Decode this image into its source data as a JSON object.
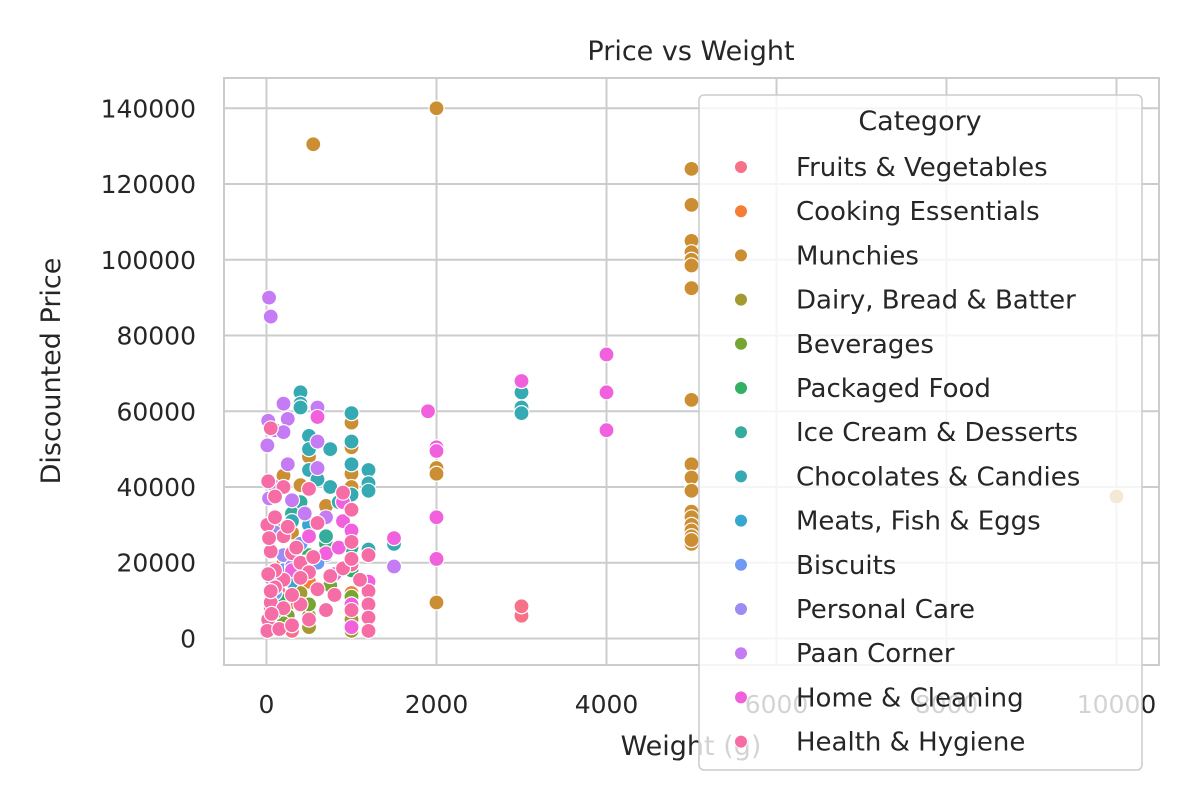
{
  "chart_data": {
    "type": "scatter",
    "title": "Price vs Weight",
    "xlabel": "Weight (g)",
    "ylabel": "Discounted Price",
    "xlim": [
      -500,
      10500
    ],
    "ylim": [
      -7000,
      148000
    ],
    "x_ticks": [
      0,
      2000,
      4000,
      6000,
      8000,
      10000
    ],
    "x_tick_labels": [
      "0",
      "2000",
      "4000",
      "6000",
      "8000",
      "10000"
    ],
    "y_ticks": [
      0,
      20000,
      40000,
      60000,
      80000,
      100000,
      120000,
      140000
    ],
    "y_tick_labels": [
      "0",
      "20000",
      "40000",
      "60000",
      "80000",
      "100000",
      "120000",
      "140000"
    ],
    "grid": true,
    "legend": {
      "title": "Category",
      "position": "upper-right"
    },
    "series": [
      {
        "name": "Fruits & Vegetables",
        "color": "#f77189",
        "points": [
          [
            3000,
            6000
          ],
          [
            3000,
            8500
          ],
          [
            100,
            3000
          ],
          [
            200,
            5000
          ],
          [
            300,
            2000
          ],
          [
            500,
            4000
          ],
          [
            50,
            8000
          ],
          [
            150,
            12000
          ]
        ]
      },
      {
        "name": "Cooking Essentials",
        "color": "#f57d36",
        "points": [
          [
            100,
            5000
          ],
          [
            250,
            9000
          ],
          [
            500,
            15000
          ],
          [
            50,
            3000
          ],
          [
            1000,
            12000
          ],
          [
            200,
            20000
          ]
        ]
      },
      {
        "name": "Munchies",
        "color": "#cc8e32",
        "points": [
          [
            550,
            130500
          ],
          [
            2000,
            140000
          ],
          [
            5000,
            124000
          ],
          [
            5000,
            114500
          ],
          [
            5000,
            105000
          ],
          [
            5000,
            102000
          ],
          [
            5000,
            100000
          ],
          [
            5000,
            98500
          ],
          [
            5000,
            92500
          ],
          [
            5000,
            63000
          ],
          [
            5000,
            46000
          ],
          [
            5000,
            42500
          ],
          [
            5000,
            39000
          ],
          [
            5000,
            33500
          ],
          [
            5000,
            32000
          ],
          [
            5000,
            30000
          ],
          [
            5000,
            28500
          ],
          [
            5000,
            27000
          ],
          [
            5000,
            25000
          ],
          [
            5000,
            26000
          ],
          [
            10000,
            37500
          ],
          [
            2000,
            45000
          ],
          [
            2000,
            43500
          ],
          [
            2000,
            9500
          ],
          [
            1000,
            57000
          ],
          [
            1000,
            50500
          ],
          [
            1000,
            43500
          ],
          [
            1000,
            40000
          ],
          [
            900,
            37000
          ],
          [
            500,
            48000
          ],
          [
            200,
            43000
          ],
          [
            100,
            30000
          ],
          [
            700,
            35000
          ],
          [
            300,
            28000
          ],
          [
            400,
            40500
          ]
        ]
      },
      {
        "name": "Dairy, Bread & Batter",
        "color": "#a39b31",
        "points": [
          [
            400,
            12000
          ],
          [
            500,
            3000
          ],
          [
            1000,
            5000
          ],
          [
            200,
            8000
          ],
          [
            1000,
            2000
          ],
          [
            500,
            6000
          ],
          [
            100,
            15000
          ]
        ]
      },
      {
        "name": "Beverages",
        "color": "#76a531",
        "points": [
          [
            250,
            6000
          ],
          [
            500,
            9000
          ],
          [
            1000,
            11000
          ],
          [
            200,
            4000
          ],
          [
            750,
            14000
          ]
        ]
      },
      {
        "name": "Packaged Food",
        "color": "#32b165",
        "points": [
          [
            200,
            10000
          ],
          [
            500,
            22000
          ],
          [
            1000,
            18000
          ],
          [
            100,
            7000
          ],
          [
            300,
            16000
          ],
          [
            700,
            25000
          ]
        ]
      },
      {
        "name": "Ice Cream & Desserts",
        "color": "#35ad9c",
        "points": [
          [
            400,
            36000
          ],
          [
            500,
            30000
          ],
          [
            700,
            27000
          ],
          [
            1000,
            24000
          ],
          [
            450,
            20000
          ],
          [
            300,
            33000
          ]
        ]
      },
      {
        "name": "Chocolates & Candies",
        "color": "#36aab2",
        "points": [
          [
            400,
            65000
          ],
          [
            400,
            62000
          ],
          [
            400,
            61000
          ],
          [
            500,
            53500
          ],
          [
            500,
            50000
          ],
          [
            500,
            44500
          ],
          [
            750,
            50000
          ],
          [
            750,
            40000
          ],
          [
            1000,
            59500
          ],
          [
            1000,
            52000
          ],
          [
            1000,
            46000
          ],
          [
            1000,
            38000
          ],
          [
            1200,
            44500
          ],
          [
            1200,
            41000
          ],
          [
            1200,
            39000
          ],
          [
            1200,
            23500
          ],
          [
            3000,
            65000
          ],
          [
            3000,
            61000
          ],
          [
            3000,
            59500
          ],
          [
            1500,
            25000
          ],
          [
            600,
            42000
          ],
          [
            850,
            36000
          ],
          [
            300,
            31000
          ]
        ]
      },
      {
        "name": "Meats, Fish & Eggs",
        "color": "#38a7d0",
        "points": [
          [
            500,
            30000
          ],
          [
            700,
            22000
          ],
          [
            1000,
            28000
          ],
          [
            300,
            15000
          ]
        ]
      },
      {
        "name": "Biscuits",
        "color": "#6e9af4",
        "points": [
          [
            200,
            18000
          ],
          [
            400,
            25000
          ],
          [
            100,
            12000
          ],
          [
            600,
            20000
          ]
        ]
      },
      {
        "name": "Personal Care",
        "color": "#9f8bf4",
        "points": [
          [
            100,
            28000
          ],
          [
            200,
            22000
          ],
          [
            300,
            19000
          ],
          [
            50,
            16000
          ]
        ]
      },
      {
        "name": "Paan Corner",
        "color": "#c47bf4",
        "points": [
          [
            30,
            90000
          ],
          [
            50,
            85000
          ],
          [
            20,
            57500
          ],
          [
            10,
            51000
          ],
          [
            100,
            55000
          ],
          [
            200,
            62000
          ],
          [
            250,
            58000
          ],
          [
            200,
            54500
          ],
          [
            600,
            61000
          ],
          [
            600,
            52000
          ],
          [
            600,
            45000
          ],
          [
            250,
            46000
          ],
          [
            450,
            33000
          ],
          [
            300,
            36500
          ],
          [
            1500,
            19000
          ],
          [
            100,
            40000
          ],
          [
            30,
            37000
          ],
          [
            700,
            32000
          ]
        ]
      },
      {
        "name": "Home & Cleaning",
        "color": "#f161dd",
        "points": [
          [
            1900,
            60000
          ],
          [
            2000,
            50500
          ],
          [
            2000,
            49500
          ],
          [
            2000,
            32000
          ],
          [
            2000,
            21000
          ],
          [
            3000,
            68000
          ],
          [
            4000,
            75000
          ],
          [
            4000,
            65000
          ],
          [
            4000,
            55000
          ],
          [
            1500,
            26500
          ],
          [
            900,
            36000
          ],
          [
            900,
            31000
          ],
          [
            1000,
            28500
          ],
          [
            600,
            58500
          ],
          [
            800,
            17000
          ],
          [
            1000,
            9000
          ],
          [
            1000,
            3000
          ],
          [
            700,
            22500
          ],
          [
            500,
            27000
          ],
          [
            300,
            18000
          ],
          [
            1200,
            15000
          ],
          [
            850,
            24000
          ]
        ]
      },
      {
        "name": "Health & Hygiene",
        "color": "#f66ca4",
        "points": [
          [
            50,
            55500
          ],
          [
            20,
            41500
          ],
          [
            200,
            40000
          ],
          [
            100,
            37500
          ],
          [
            10,
            30000
          ],
          [
            500,
            39500
          ],
          [
            1000,
            34000
          ],
          [
            900,
            38500
          ],
          [
            600,
            30500
          ],
          [
            100,
            32000
          ],
          [
            50,
            23000
          ],
          [
            200,
            27000
          ],
          [
            300,
            22500
          ],
          [
            400,
            20000
          ],
          [
            500,
            17500
          ],
          [
            200,
            15500
          ],
          [
            100,
            13500
          ],
          [
            50,
            9500
          ],
          [
            20,
            5000
          ],
          [
            10,
            2000
          ],
          [
            150,
            2500
          ],
          [
            300,
            3500
          ],
          [
            400,
            9000
          ],
          [
            600,
            13000
          ],
          [
            800,
            11500
          ],
          [
            1000,
            19500
          ],
          [
            1000,
            25500
          ],
          [
            1200,
            22000
          ],
          [
            1200,
            12500
          ],
          [
            1200,
            9000
          ],
          [
            1200,
            5500
          ],
          [
            1200,
            2000
          ],
          [
            1000,
            7500
          ],
          [
            700,
            7500
          ],
          [
            500,
            5000
          ],
          [
            300,
            11500
          ],
          [
            200,
            8000
          ],
          [
            100,
            18000
          ],
          [
            50,
            12500
          ],
          [
            30,
            26500
          ],
          [
            20,
            17000
          ],
          [
            60,
            6500
          ],
          [
            400,
            16000
          ],
          [
            550,
            21500
          ],
          [
            750,
            16500
          ],
          [
            900,
            18500
          ],
          [
            1000,
            21000
          ],
          [
            1100,
            15500
          ],
          [
            250,
            29500
          ],
          [
            350,
            24000
          ]
        ]
      }
    ]
  }
}
